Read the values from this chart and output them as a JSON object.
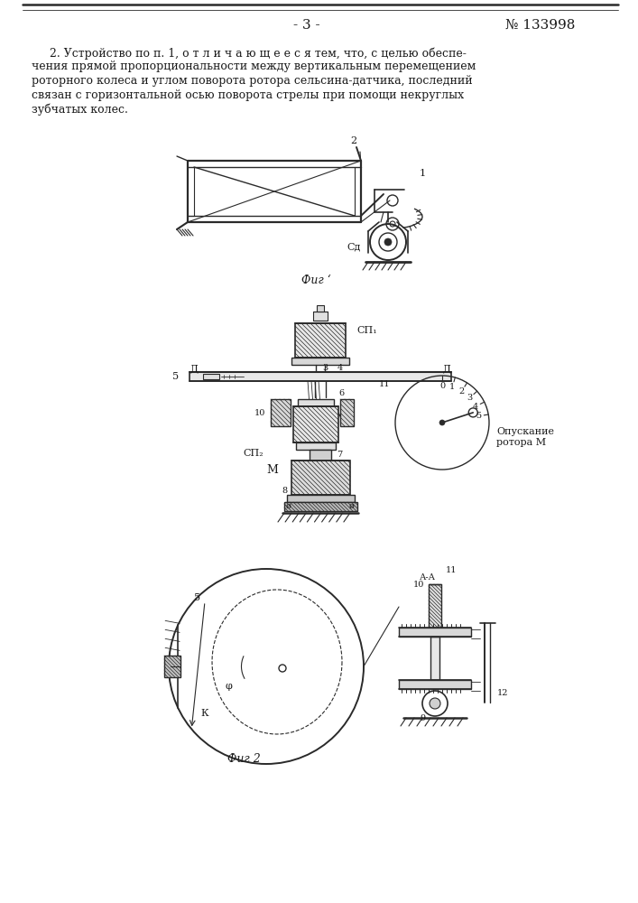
{
  "title": "№ 133998",
  "page_num": "- 3 -",
  "bg_color": "#ffffff",
  "line_color": "#2a2a2a",
  "text_color": "#1a1a1a",
  "fig_width": 7.07,
  "fig_height": 10.0,
  "dpi": 100,
  "paragraph_lines": [
    "2. Устройство по п. 1, о т л и ч а ю щ е е с я тем, что, с целью обеспе-",
    "чения прямой пропорциональности между вертикальным перемещением",
    "роторного колеса и углом поворота ротора сельсина-датчика, последний",
    "связан с горизонтальной осью поворота стрелы при помощи некруглых",
    "зубчатых колес."
  ],
  "fig1_caption": "Фиг ‘",
  "fig2_caption": "Фиг 2",
  "label_sd": "Сд",
  "label_sp1": "СП₁",
  "label_sp2": "СП₂",
  "label_m": "M",
  "label_opuskanie": "Опускание",
  "label_rotora_m": "ротора M",
  "label_aa": "А-А",
  "label_d": "Д",
  "label_fi": "φ",
  "label_k": "К"
}
